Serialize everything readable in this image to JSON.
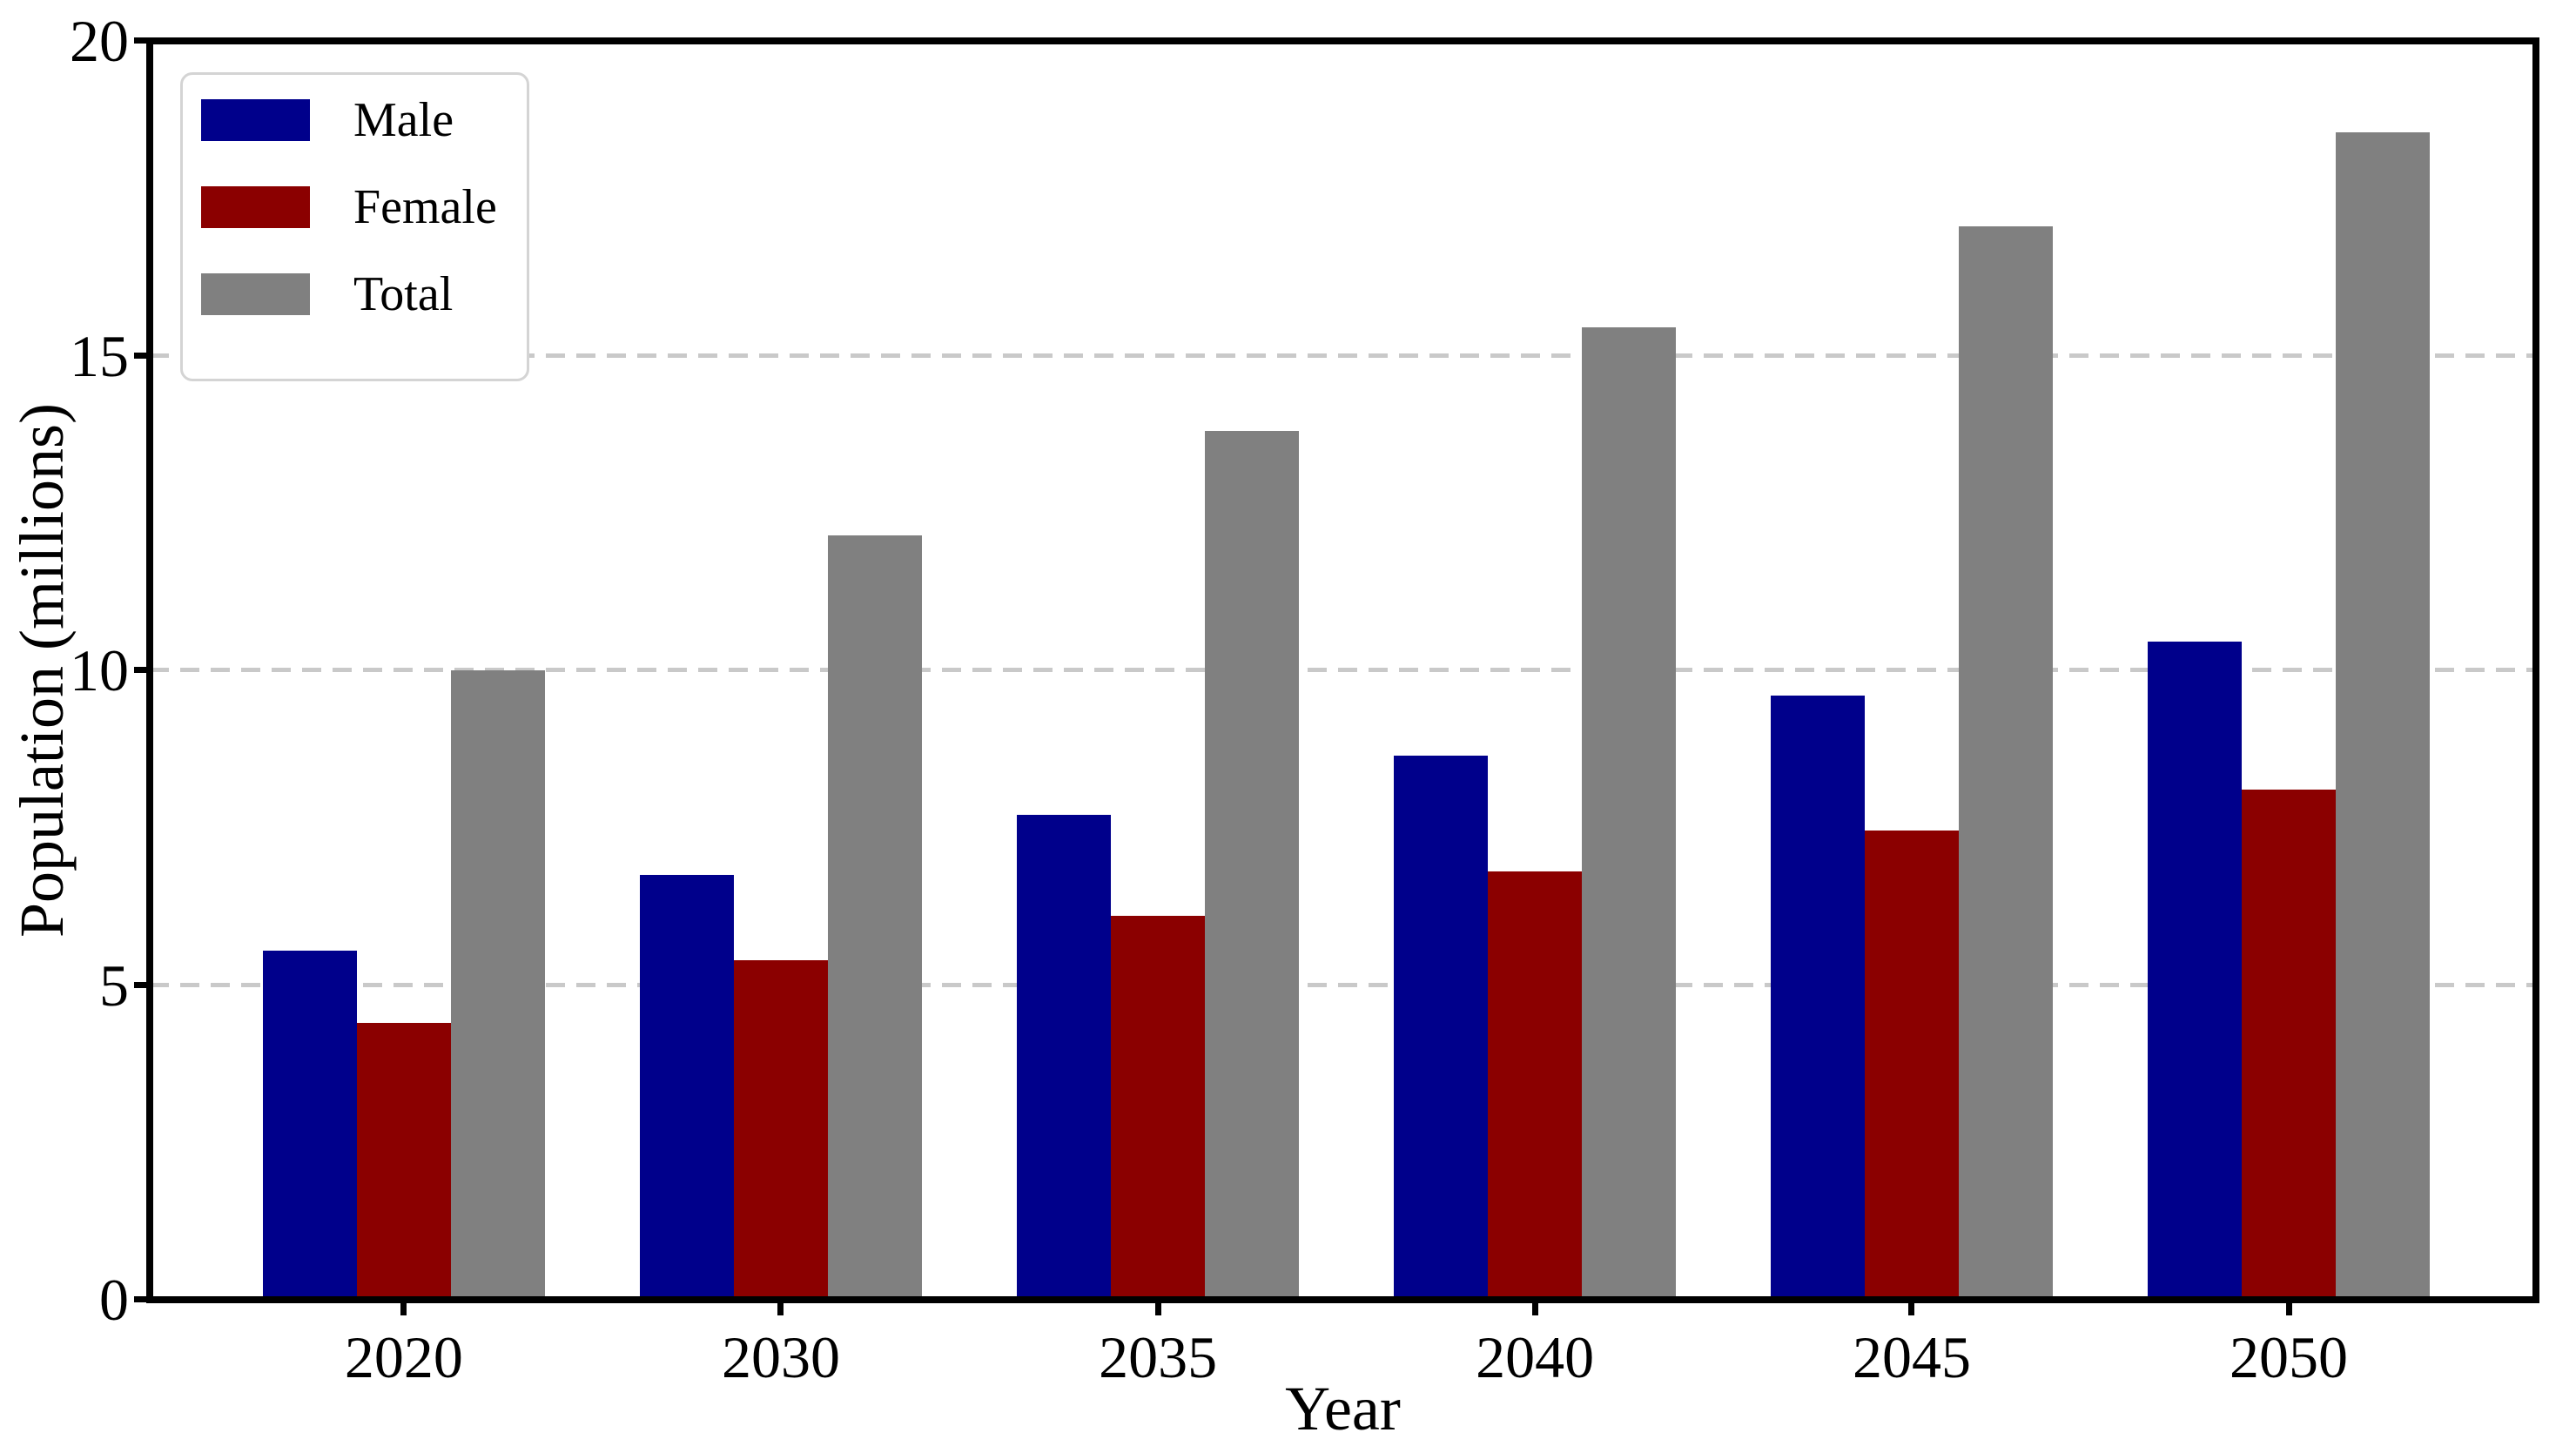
{
  "chart_data": {
    "type": "bar",
    "title": "",
    "xlabel": "Year",
    "ylabel": "Population (millions)",
    "categories": [
      "2020",
      "2030",
      "2035",
      "2040",
      "2045",
      "2050"
    ],
    "series": [
      {
        "name": "Male",
        "color": "#00008B",
        "values": [
          5.55,
          6.75,
          7.7,
          8.65,
          9.6,
          10.45
        ]
      },
      {
        "name": "Female",
        "color": "#8B0000",
        "values": [
          4.4,
          5.4,
          6.1,
          6.8,
          7.45,
          8.1
        ]
      },
      {
        "name": "Total",
        "color": "#808080",
        "values": [
          10.0,
          12.15,
          13.8,
          15.45,
          17.05,
          18.55
        ]
      }
    ],
    "ylim": [
      0,
      20
    ],
    "yticks": [
      0,
      5,
      10,
      15,
      20
    ],
    "gridlines": {
      "values": [
        5,
        10,
        15
      ],
      "style": "dashed",
      "color": "#c9c9c9"
    },
    "legend_position": "upper left",
    "axis_color": "#000000",
    "background_color": "#ffffff"
  }
}
